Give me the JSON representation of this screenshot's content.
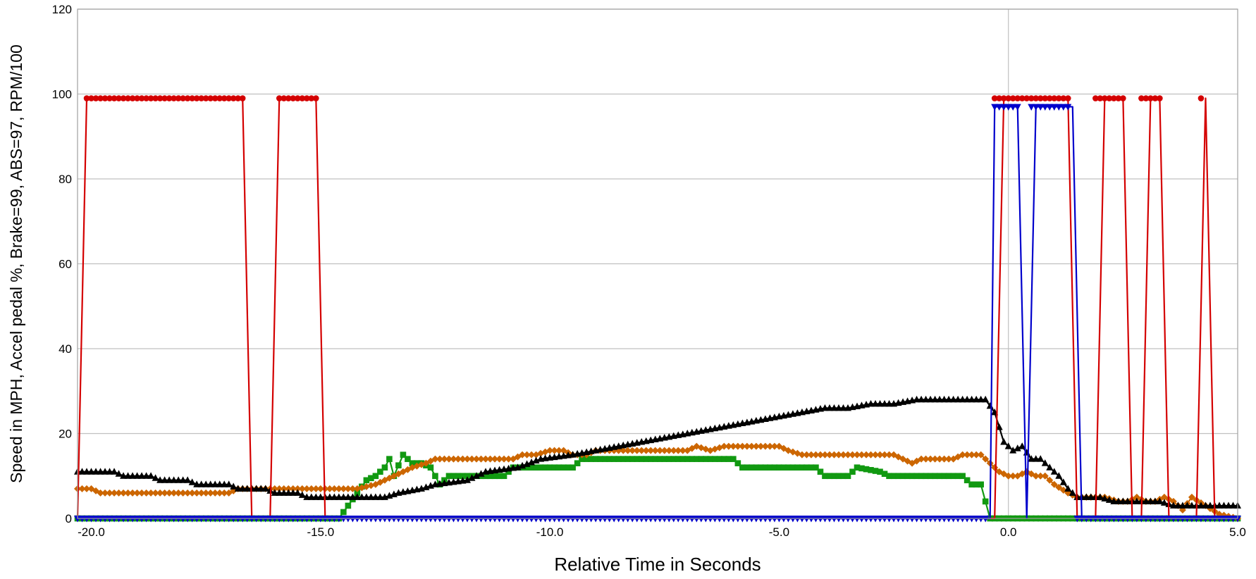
{
  "chart_data": {
    "type": "line",
    "title": "",
    "xlabel": "Relative Time in Seconds",
    "ylabel": "Speed in MPH, Accel pedal %, Brake=99, ABS=97, RPM/100",
    "xlim": [
      -20.3,
      5.0
    ],
    "ylim": [
      0,
      120
    ],
    "x_ticks": [
      -20.0,
      -15.0,
      -10.0,
      -5.0,
      0.0,
      5.0
    ],
    "x_tick_labels": [
      "-20.0",
      "-15.0",
      "-10.0",
      "-5.0",
      "0.0",
      "5.0"
    ],
    "y_ticks": [
      0,
      20,
      40,
      60,
      80,
      100,
      120
    ],
    "y_tick_labels": [
      "0",
      "20",
      "40",
      "60",
      "80",
      "100",
      "120"
    ],
    "grid": "horizontal",
    "vertical_reference_line_x": 0,
    "legend": "none",
    "colors": {
      "brake": "#d40000",
      "abs": "#0000cc",
      "speed": "#000000",
      "accel": "#119911",
      "rpm": "#cc6600",
      "grid": "#c0c0c0",
      "frame": "#a0a0a0"
    },
    "series": [
      {
        "key": "brake",
        "marker": "circle",
        "color": "#d40000",
        "x": [
          -20.3,
          -20.1,
          -16.7,
          -16.5,
          -16.1,
          -15.9,
          -15.1,
          -14.9,
          -0.3,
          -0.1,
          1.3,
          1.5,
          1.9,
          2.1,
          2.5,
          2.7,
          2.9,
          3.1,
          3.3,
          3.5,
          4.1,
          4.3,
          4.5,
          5.0
        ],
        "y": [
          0,
          99,
          99,
          0,
          0,
          99,
          99,
          0,
          0,
          99,
          99,
          0,
          0,
          99,
          99,
          0,
          0,
          99,
          99,
          0,
          0,
          99,
          0,
          0
        ],
        "marker_ranges": [
          [
            -20.1,
            -16.7,
            99
          ],
          [
            -15.9,
            -15.1,
            99
          ],
          [
            -0.3,
            1.3,
            99
          ],
          [
            1.9,
            2.5,
            99
          ],
          [
            2.9,
            3.3,
            99
          ],
          [
            4.2,
            4.2,
            99
          ]
        ]
      },
      {
        "key": "abs",
        "marker": "triangle-down",
        "color": "#0000cc",
        "x": [
          -20.3,
          -0.4,
          -0.3,
          0.2,
          0.4,
          0.6,
          1.4,
          1.6,
          5.0
        ],
        "y": [
          0,
          0,
          97,
          97,
          0,
          97,
          97,
          0,
          0
        ],
        "marker_ranges": [
          [
            -20.3,
            -0.5,
            0
          ],
          [
            -0.3,
            0.2,
            97
          ],
          [
            0.5,
            1.3,
            97
          ],
          [
            1.5,
            5.0,
            0
          ]
        ]
      },
      {
        "key": "speed",
        "marker": "triangle-up",
        "color": "#000000",
        "x": [
          -20.3,
          -19.5,
          -19.3,
          -18.7,
          -18.5,
          -17.9,
          -17.7,
          -17.0,
          -16.8,
          -16.2,
          -16.0,
          -15.5,
          -15.3,
          -13.6,
          -13.3,
          -12.8,
          -12.5,
          -11.8,
          -11.4,
          -10.7,
          -10.2,
          -9.5,
          -9.0,
          -8.5,
          -8.0,
          -7.5,
          -7.0,
          -6.5,
          -6.0,
          -5.5,
          -5.0,
          -4.5,
          -4.0,
          -3.5,
          -3.0,
          -2.5,
          -2.0,
          -1.5,
          -0.5,
          -0.3,
          -0.1,
          0.1,
          0.3,
          0.5,
          0.7,
          0.9,
          1.1,
          1.3,
          1.5,
          1.8,
          2.0,
          2.3,
          2.6,
          3.0,
          3.3,
          3.6,
          3.9,
          4.2,
          4.5,
          5.0
        ],
        "y": [
          11,
          11,
          10,
          10,
          9,
          9,
          8,
          8,
          7,
          7,
          6,
          6,
          5,
          5,
          6,
          7,
          8,
          9,
          11,
          12,
          14,
          15,
          16,
          17,
          18,
          19,
          20,
          21,
          22,
          23,
          24,
          25,
          26,
          26,
          27,
          27,
          28,
          28,
          28,
          25,
          18,
          16,
          17,
          14,
          14,
          12,
          10,
          7,
          5,
          5,
          5,
          4,
          4,
          4,
          4,
          3,
          3,
          3,
          3,
          3
        ]
      },
      {
        "key": "accel",
        "marker": "square",
        "color": "#119911",
        "x": [
          -20.3,
          -14.6,
          -14.4,
          -14.2,
          -14.0,
          -13.8,
          -13.6,
          -13.5,
          -13.4,
          -13.2,
          -13.0,
          -12.8,
          -12.6,
          -12.4,
          -12.2,
          -12.0,
          -11.0,
          -10.8,
          -9.5,
          -9.3,
          -6.0,
          -5.8,
          -4.2,
          -4.0,
          -3.5,
          -3.3,
          -2.8,
          -2.6,
          -1.0,
          -0.8,
          -0.6,
          -0.4,
          5.0
        ],
        "y": [
          0,
          0,
          3,
          6,
          9,
          10,
          12,
          14,
          10,
          15,
          13,
          13,
          12,
          8,
          10,
          10,
          10,
          12,
          12,
          14,
          14,
          12,
          12,
          10,
          10,
          12,
          11,
          10,
          10,
          8,
          8,
          0,
          0
        ]
      },
      {
        "key": "rpm",
        "marker": "diamond",
        "color": "#cc6600",
        "x": [
          -20.3,
          -20.0,
          -19.8,
          -19.0,
          -18.8,
          -17.0,
          -16.8,
          -16.0,
          -14.5,
          -14.2,
          -13.8,
          -13.4,
          -13.0,
          -12.7,
          -12.5,
          -11.5,
          -11.3,
          -10.8,
          -10.6,
          -10.3,
          -10.0,
          -9.7,
          -9.5,
          -9.2,
          -9.0,
          -8.5,
          -7.0,
          -6.8,
          -6.5,
          -6.2,
          -5.5,
          -5.0,
          -4.8,
          -4.5,
          -2.5,
          -2.3,
          -2.1,
          -1.9,
          -1.6,
          -1.2,
          -1.0,
          -0.6,
          -0.4,
          -0.2,
          0.0,
          0.2,
          0.4,
          0.6,
          0.8,
          1.0,
          1.3,
          1.5,
          1.8,
          2.1,
          2.4,
          2.6,
          2.8,
          3.0,
          3.2,
          3.4,
          3.6,
          3.8,
          4.0,
          4.3,
          4.6,
          5.0
        ],
        "y": [
          7,
          7,
          6,
          6,
          6,
          6,
          7,
          7,
          7,
          7,
          8,
          10,
          12,
          13,
          14,
          14,
          14,
          14,
          15,
          15,
          16,
          16,
          15,
          15,
          16,
          16,
          16,
          17,
          16,
          17,
          17,
          17,
          16,
          15,
          15,
          14,
          13,
          14,
          14,
          14,
          15,
          15,
          13,
          11,
          10,
          10,
          11,
          10,
          10,
          8,
          6,
          5,
          5,
          5,
          4,
          4,
          5,
          4,
          4,
          5,
          4,
          2,
          5,
          3,
          1,
          0
        ]
      }
    ]
  }
}
